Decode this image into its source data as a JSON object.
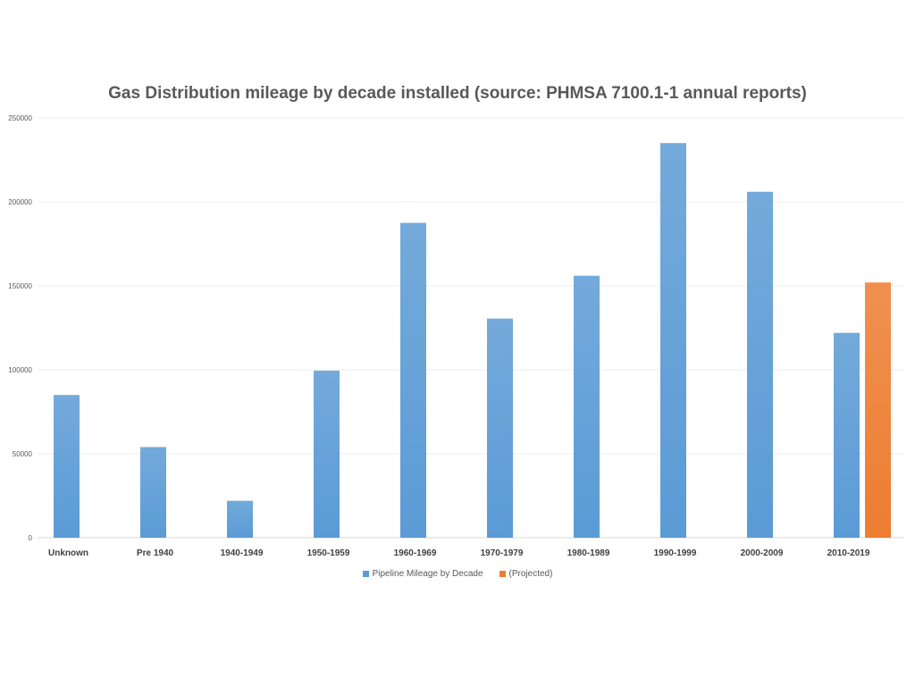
{
  "chart_data": {
    "type": "bar",
    "title": "Gas Distribution mileage by decade installed (source: PHMSA 7100.1-1 annual reports)",
    "xlabel": "",
    "ylabel": "",
    "categories": [
      "Unknown",
      "Pre 1940",
      "1940-1949",
      "1950-1959",
      "1960-1969",
      "1970-1979",
      "1980-1989",
      "1990-1999",
      "2000-2009",
      "2010-2019"
    ],
    "series": [
      {
        "name": "Pipeline Mileage by Decade",
        "color": "#5b9bd5",
        "values": [
          85000,
          54000,
          22000,
          99500,
          187500,
          130500,
          156000,
          235000,
          206000,
          122000
        ]
      },
      {
        "name": "(Projected)",
        "color": "#ed7d31",
        "values": [
          null,
          null,
          null,
          null,
          null,
          null,
          null,
          null,
          null,
          152000
        ]
      }
    ],
    "ylim": [
      0,
      250000
    ],
    "yticks": [
      0,
      50000,
      100000,
      150000,
      200000,
      250000
    ],
    "grid": true,
    "legend_position": "bottom"
  }
}
